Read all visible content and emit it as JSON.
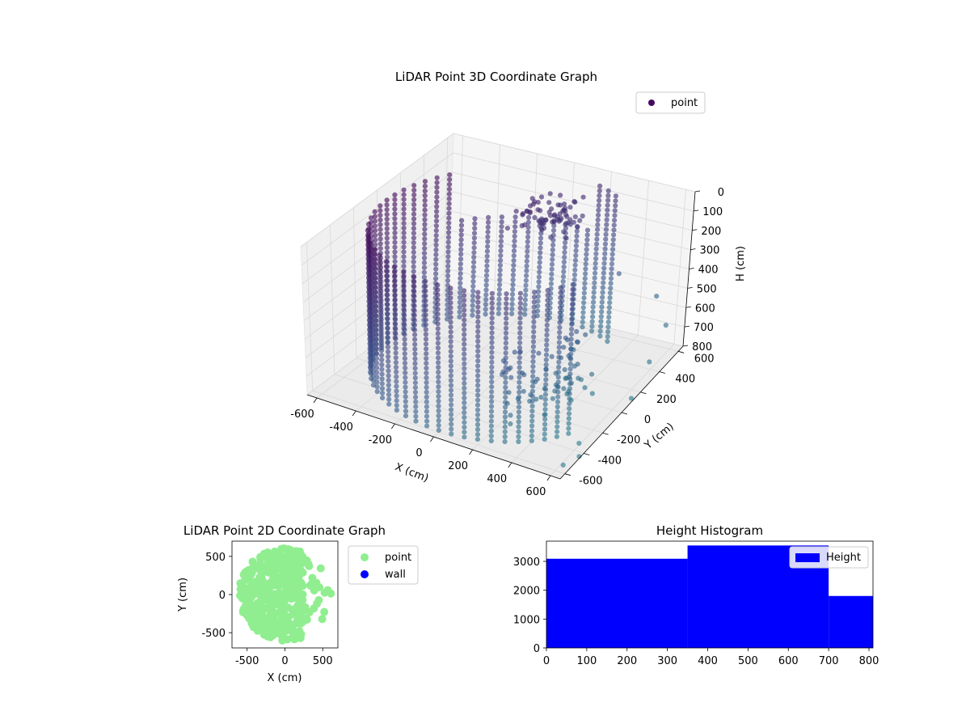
{
  "colors": {
    "point_3d": "#440a5e",
    "point_2d": "#90ee90",
    "wall": "#0000ff",
    "hist": "#0000ff",
    "pane": "#f2f2f2",
    "grid": "#d9d9d9"
  },
  "chart_data": [
    {
      "type": "scatter",
      "title": "LiDAR Point 3D Coordinate Graph",
      "projection": "3d",
      "xlabel": "X (cm)",
      "ylabel": "Y (cm)",
      "zlabel": "H (cm)",
      "xlim": [
        -650,
        650
      ],
      "ylim": [
        -650,
        650
      ],
      "zlim": [
        0,
        800
      ],
      "z_inverted": true,
      "x_ticks": [
        "-600",
        "-400",
        "-200",
        "0",
        "200",
        "400",
        "600"
      ],
      "y_ticks": [
        "-600",
        "-400",
        "-200",
        "0",
        "200",
        "400",
        "600"
      ],
      "z_ticks": [
        "0",
        "100",
        "200",
        "300",
        "400",
        "500",
        "600",
        "700",
        "800"
      ],
      "legend": [
        "point"
      ],
      "legend_placement": "top-right",
      "colormap": "viridis",
      "shape": "cylindrical wall of points, radius about 600 cm, height 0 to 800 cm, open toward +x",
      "series": [
        {
          "name": "point",
          "outliers": [
            {
              "x": 500,
              "y": 620,
              "z": 560
            },
            {
              "x": 300,
              "y": 600,
              "z": 480
            },
            {
              "x": 620,
              "y": 500,
              "z": 620
            },
            {
              "x": 640,
              "y": 300,
              "z": 700
            },
            {
              "x": 650,
              "y": 100,
              "z": 780
            },
            {
              "x": 600,
              "y": -350,
              "z": 790
            },
            {
              "x": 650,
              "y": -450,
              "z": 790
            },
            {
              "x": 640,
              "y": -600,
              "z": 760
            }
          ]
        }
      ]
    },
    {
      "type": "scatter",
      "title": "LiDAR Point 2D Coordinate Graph",
      "xlabel": "X (cm)",
      "ylabel": "Y (cm)",
      "xlim": [
        -700,
        700
      ],
      "ylim": [
        -700,
        700
      ],
      "x_ticks": [
        "-500",
        "0",
        "500"
      ],
      "y_ticks": [
        "-500",
        "0",
        "500"
      ],
      "legend": [
        "point",
        "wall"
      ],
      "legend_placement": "outside-right",
      "series": [
        {
          "name": "point",
          "shape": "filled disc of radius about 600 cm, right side (x > 250) only partially filled"
        },
        {
          "name": "wall",
          "points": []
        }
      ]
    },
    {
      "type": "bar",
      "title": "Height Histogram",
      "xlabel": "",
      "ylabel": "",
      "xlim": [
        0,
        810
      ],
      "ylim": [
        0,
        3700
      ],
      "x_ticks": [
        "0",
        "100",
        "200",
        "300",
        "400",
        "500",
        "600",
        "700",
        "800"
      ],
      "y_ticks": [
        "0",
        "1000",
        "2000",
        "3000"
      ],
      "legend": [
        "Height"
      ],
      "legend_placement": "top-right",
      "bins": [
        {
          "from": 0,
          "to": 350,
          "count": 3090
        },
        {
          "from": 350,
          "to": 700,
          "count": 3550
        },
        {
          "from": 700,
          "to": 810,
          "count": 1800
        }
      ]
    }
  ]
}
